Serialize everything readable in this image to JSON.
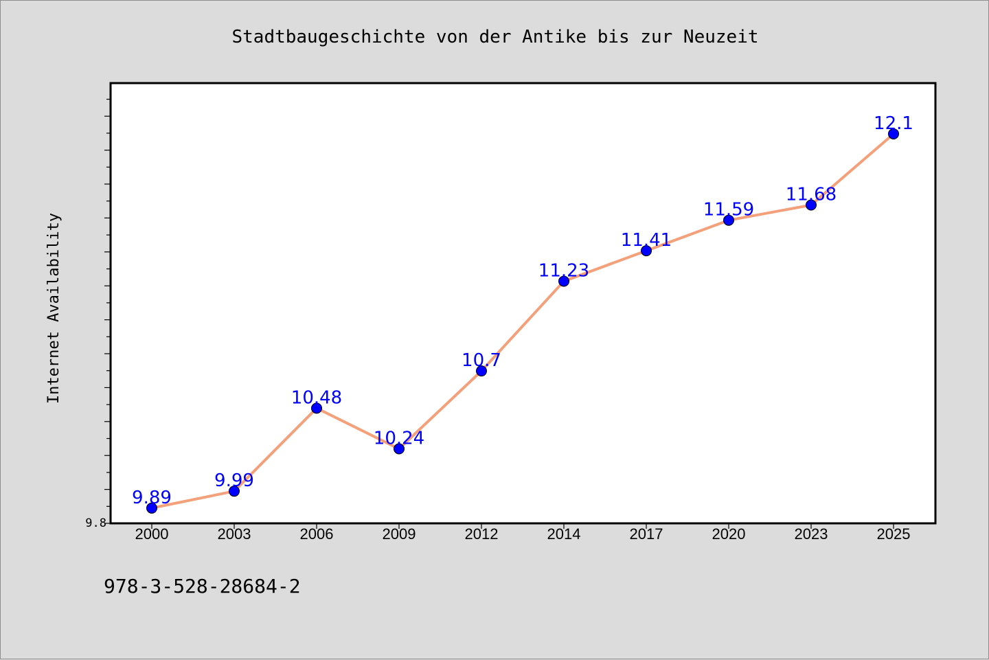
{
  "footer": {
    "isbn": "978-3-528-28684-2"
  },
  "colors": {
    "background": "#dcdcdc",
    "plot_background": "#ffffff",
    "line": "#f4a07a",
    "marker": "#0000ff",
    "data_label": "#0000ff"
  },
  "chart_data": {
    "type": "line",
    "title": "Stadtbaugeschichte von der Antike bis zur Neuzeit",
    "xlabel": "",
    "ylabel": "Internet Availability",
    "categories": [
      "2000",
      "2003",
      "2006",
      "2009",
      "2012",
      "2014",
      "2017",
      "2020",
      "2023",
      "2025"
    ],
    "series": [
      {
        "values": [
          9.89,
          9.99,
          10.48,
          10.24,
          10.7,
          11.23,
          11.41,
          11.59,
          11.68,
          12.1
        ],
        "data_labels": [
          "9.89",
          "9.99",
          "10.48",
          "10.24",
          "10.7",
          "11.23",
          "11.41",
          "11.59",
          "11.68",
          "12.1"
        ]
      }
    ],
    "ylim": [
      9.8,
      12.4
    ],
    "y_tick_labels": [
      "9.8"
    ],
    "grid": false,
    "legend": "none",
    "marker": "circle"
  }
}
